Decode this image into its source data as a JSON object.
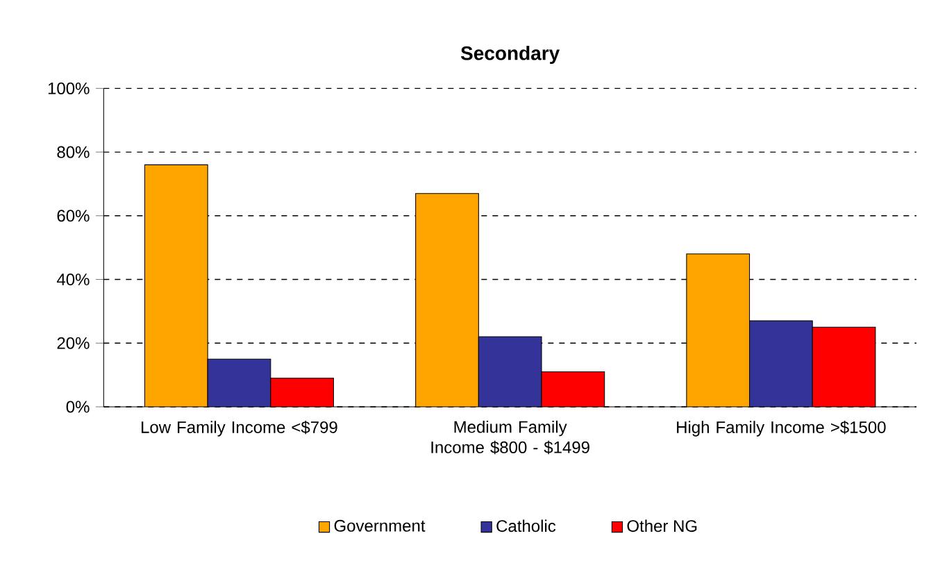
{
  "chart_data": {
    "type": "bar",
    "title": "Secondary",
    "categories": [
      "Low  Family Income <$799",
      "Medium Family Income $800 - $1499",
      "High Family Income >$1500"
    ],
    "series": [
      {
        "name": "Government",
        "color": "#ffa500",
        "values": [
          76,
          67,
          48
        ]
      },
      {
        "name": "Catholic",
        "color": "#333399",
        "values": [
          15,
          22,
          27
        ]
      },
      {
        "name": "Other NG",
        "color": "#ff0000",
        "values": [
          9,
          11,
          25
        ]
      }
    ],
    "ylim": [
      0,
      100
    ],
    "yticks": [
      {
        "value": 0,
        "label": "0%"
      },
      {
        "value": 20,
        "label": "20%"
      },
      {
        "value": 40,
        "label": "40%"
      },
      {
        "value": 60,
        "label": "60%"
      },
      {
        "value": 80,
        "label": "80%"
      },
      {
        "value": 100,
        "label": "100%"
      }
    ],
    "grid": "y",
    "legend": "bottom"
  }
}
